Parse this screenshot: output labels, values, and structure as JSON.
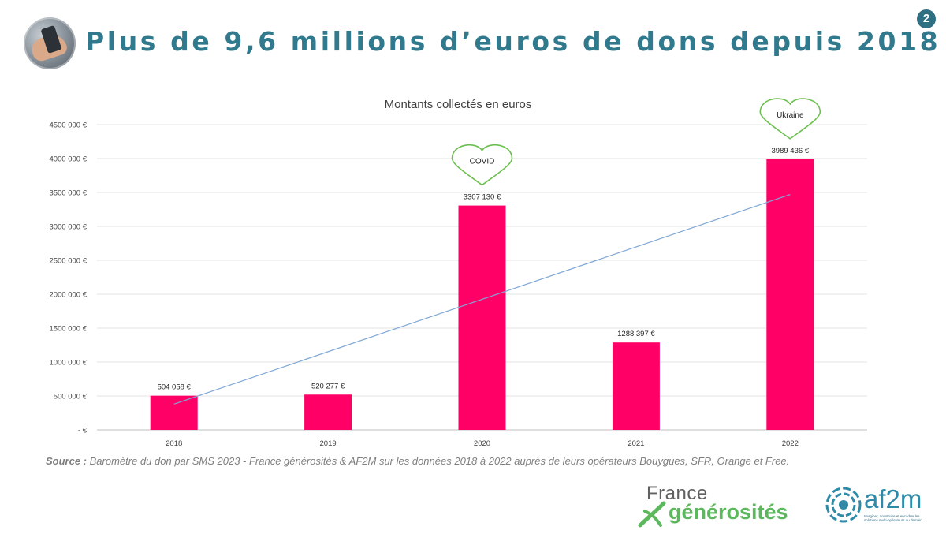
{
  "header": {
    "title": "Plus de 9,6 millions d’euros de dons depuis 2018",
    "page_number": "2"
  },
  "chart_data": {
    "type": "bar",
    "title": "Montants collectés en euros",
    "categories": [
      "2018",
      "2019",
      "2020",
      "2021",
      "2022"
    ],
    "values": [
      504058,
      520277,
      3307130,
      1288397,
      3989436
    ],
    "value_labels": [
      "504 058 €",
      "520 277 €",
      "3307 130 €",
      "1288 397 €",
      "3989 436 €"
    ],
    "ylim": [
      0,
      4500000
    ],
    "yticks": [
      0,
      500000,
      1000000,
      1500000,
      2000000,
      2500000,
      3000000,
      3500000,
      4000000,
      4500000
    ],
    "ytick_labels": [
      "-   €",
      "500 000 €",
      "1000 000 €",
      "1500 000 €",
      "2000 000 €",
      "2500 000 €",
      "3000 000 €",
      "3500 000 €",
      "4000 000 €",
      "4500 000 €"
    ],
    "grid": true,
    "bar_color": "#ff0066",
    "trendline": {
      "type": "linear",
      "color": "#7fa7d6",
      "from": 380000,
      "to": 3470000
    },
    "annotations": [
      {
        "label": "COVID",
        "category": "2020",
        "shape": "heart",
        "color": "#6cbf4f"
      },
      {
        "label": "Ukraine",
        "category": "2022",
        "shape": "heart",
        "color": "#6cbf4f"
      }
    ]
  },
  "source": {
    "label": "Source :",
    "text": "Baromètre du don par SMS 2023 - France générosités & AF2M sur les données 2018 à 2022 auprès de leurs opérateurs Bouygues, SFR, Orange et Free."
  },
  "logos": {
    "france_generosites": {
      "line1": "France",
      "line2": "générosités",
      "color": "#5cb85c"
    },
    "af2m": {
      "name": "af2m",
      "tagline": "Imaginer, construire et encadrer les solutions multi-opérateurs du demain"
    }
  }
}
